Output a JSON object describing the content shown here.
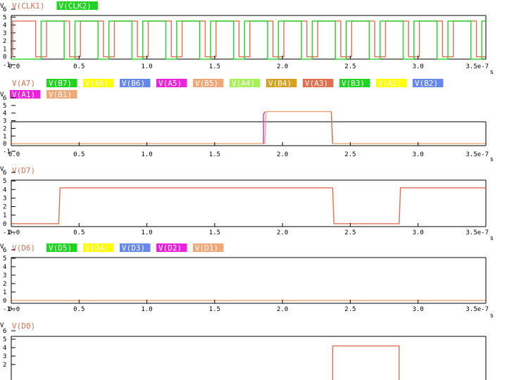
{
  "x_unit": "s",
  "x_max_label": "3.5e-7",
  "panels": [
    {
      "y_axis_label": "V",
      "legend_rows": [
        [
          {
            "text": "V(CLK1)",
            "color": "#e07050",
            "bg": "#ffffff"
          },
          {
            "text": "V(CLK2)",
            "color": "#ffffff",
            "bg": "#1ed41e"
          }
        ]
      ]
    },
    {
      "y_axis_label": "V",
      "legend_rows": [
        [
          {
            "text": "V(A7)",
            "color": "#e07050",
            "bg": "#ffffff"
          },
          {
            "text": "V(B7)",
            "color": "#ffffff",
            "bg": "#1ed41e"
          },
          {
            "text": "V(A6)",
            "color": "#ffffff",
            "bg": "#ffff00"
          },
          {
            "text": "V(B6)",
            "color": "#ffffff",
            "bg": "#6688ee"
          },
          {
            "text": "V(A5)",
            "color": "#ffffff",
            "bg": "#ee22dd"
          },
          {
            "text": "V(B5)",
            "color": "#ffffff",
            "bg": "#f0a878"
          },
          {
            "text": "V(A4)",
            "color": "#ffffff",
            "bg": "#a8f05a"
          },
          {
            "text": "V(B4)",
            "color": "#ffffff",
            "bg": "#d8a020"
          },
          {
            "text": "V(A3)",
            "color": "#ffffff",
            "bg": "#e07050"
          },
          {
            "text": "V(B3)",
            "color": "#ffffff",
            "bg": "#1ed41e"
          },
          {
            "text": "V(A2)",
            "color": "#ffffff",
            "bg": "#ffff00"
          },
          {
            "text": "V(B2)",
            "color": "#ffffff",
            "bg": "#6688ee"
          }
        ],
        [
          {
            "text": "V(A1)",
            "color": "#ffffff",
            "bg": "#ee22dd"
          },
          {
            "text": "V(B1)",
            "color": "#ffffff",
            "bg": "#f0a878"
          }
        ]
      ]
    },
    {
      "y_axis_label": "V",
      "legend_rows": [
        [
          {
            "text": "V(D7)",
            "color": "#e07050",
            "bg": "#ffffff"
          }
        ]
      ]
    },
    {
      "y_axis_label": "V",
      "legend_rows": [
        [
          {
            "text": "V(D6)",
            "color": "#e07050",
            "bg": "#ffffff"
          },
          {
            "text": "V(D5)",
            "color": "#ffffff",
            "bg": "#1ed41e"
          },
          {
            "text": "V(D4)",
            "color": "#ffffff",
            "bg": "#ffff00"
          },
          {
            "text": "V(D3)",
            "color": "#ffffff",
            "bg": "#6688ee"
          },
          {
            "text": "V(D2)",
            "color": "#ffffff",
            "bg": "#ee22dd"
          },
          {
            "text": "V(D1)",
            "color": "#ffffff",
            "bg": "#f0a878"
          }
        ]
      ]
    },
    {
      "y_axis_label": "V",
      "legend_rows": [
        [
          {
            "text": "V(D0)",
            "color": "#e07050",
            "bg": "#ffffff"
          }
        ]
      ]
    }
  ],
  "chart_data": [
    {
      "type": "line",
      "title": "",
      "xlabel": "s",
      "ylabel": "V",
      "xlim": [
        0,
        3.5
      ],
      "ylim": [
        -1,
        6
      ],
      "x_ticks": [
        "0.0",
        "0.5",
        "1.0",
        "1.5",
        "2.0",
        "2.5",
        "3.0",
        "3.5e-7"
      ],
      "y_ticks": [
        "-1",
        "0",
        "1",
        "2",
        "3",
        "4",
        "5",
        "6"
      ],
      "series": [
        {
          "name": "V(CLK1)",
          "color": "#e07050",
          "x": [
            0.0,
            0.01,
            0.01,
            0.18,
            0.18,
            0.26,
            0.26,
            0.43,
            0.43,
            0.51,
            0.51,
            0.68,
            0.68,
            0.76,
            0.76,
            0.93,
            0.93,
            1.01,
            1.01,
            1.18,
            1.18,
            1.26,
            1.26,
            1.43,
            1.43,
            1.51,
            1.51,
            1.68,
            1.68,
            1.76,
            1.76,
            1.93,
            1.93,
            2.01,
            2.01,
            2.18,
            2.18,
            2.26,
            2.26,
            2.43,
            2.43,
            2.51,
            2.51,
            2.68,
            2.68,
            2.76,
            2.76,
            2.93,
            2.93,
            3.01,
            3.01,
            3.18,
            3.18,
            3.26,
            3.26,
            3.43,
            3.43,
            3.5
          ],
          "y": [
            0,
            0,
            4.5,
            4.5,
            0,
            0,
            4.5,
            4.5,
            0,
            0,
            4.5,
            4.5,
            0,
            0,
            4.5,
            4.5,
            0,
            0,
            4.5,
            4.5,
            0,
            0,
            4.5,
            4.5,
            0,
            0,
            4.5,
            4.5,
            0,
            0,
            4.5,
            4.5,
            0,
            0,
            4.5,
            4.5,
            0,
            0,
            4.5,
            4.5,
            0,
            0,
            4.5,
            4.5,
            0,
            0,
            4.5,
            4.5,
            0,
            0,
            4.5,
            4.5,
            0,
            0,
            4.5,
            4.5,
            0,
            0
          ]
        },
        {
          "name": "V(CLK2)",
          "color": "#1ed41e",
          "x": [
            0.0,
            0.22,
            0.22,
            0.39,
            0.39,
            0.47,
            0.47,
            0.64,
            0.64,
            0.72,
            0.72,
            0.89,
            0.89,
            0.97,
            0.97,
            1.14,
            1.14,
            1.22,
            1.22,
            1.39,
            1.39,
            1.47,
            1.47,
            1.64,
            1.64,
            1.72,
            1.72,
            1.89,
            1.89,
            1.97,
            1.97,
            2.14,
            2.14,
            2.22,
            2.22,
            2.39,
            2.39,
            2.47,
            2.47,
            2.64,
            2.64,
            2.72,
            2.72,
            2.89,
            2.89,
            2.97,
            2.97,
            3.14,
            3.14,
            3.22,
            3.22,
            3.39,
            3.39,
            3.47,
            3.47,
            3.5
          ],
          "y": [
            -0.3,
            -0.3,
            4.5,
            4.5,
            -0.3,
            -0.3,
            4.5,
            4.5,
            -0.3,
            -0.3,
            4.5,
            4.5,
            -0.3,
            -0.3,
            4.5,
            4.5,
            -0.3,
            -0.3,
            4.5,
            4.5,
            -0.3,
            -0.3,
            4.5,
            4.5,
            -0.3,
            -0.3,
            4.5,
            4.5,
            -0.3,
            -0.3,
            4.5,
            4.5,
            -0.3,
            -0.3,
            4.5,
            4.5,
            -0.3,
            -0.3,
            4.5,
            4.5,
            -0.3,
            -0.3,
            4.5,
            4.5,
            -0.3,
            -0.3,
            4.5,
            4.5,
            -0.3,
            -0.3,
            4.5,
            4.5,
            -0.3,
            -0.3,
            4.5,
            4.5
          ]
        }
      ]
    },
    {
      "type": "line",
      "title": "",
      "xlabel": "s",
      "ylabel": "V",
      "xlim": [
        0,
        3.5
      ],
      "ylim": [
        -1,
        6
      ],
      "x_ticks": [
        "0.0",
        "0.5",
        "1.0",
        "1.5",
        "2.0",
        "2.5",
        "3.0",
        "3.5e-7"
      ],
      "y_ticks": [
        "-1",
        "0",
        "1",
        "2",
        "3",
        "4",
        "5",
        "6"
      ],
      "series": [
        {
          "name": "V(B1)",
          "color": "#f0a878",
          "x": [
            0.0,
            1.87,
            1.88,
            2.36,
            2.37,
            3.5
          ],
          "y": [
            0,
            0,
            4.2,
            4.2,
            0,
            0
          ]
        },
        {
          "name": "V(A1)",
          "color": "#ee22dd",
          "x": [
            1.86,
            1.86,
            1.87
          ],
          "y": [
            0,
            3.8,
            4.2
          ]
        },
        {
          "name": "V(A7)",
          "color": "#e07050",
          "x": [
            2.36,
            2.37
          ],
          "y": [
            4.2,
            0
          ]
        }
      ]
    },
    {
      "type": "line",
      "title": "",
      "xlabel": "s",
      "ylabel": "V",
      "xlim": [
        0,
        3.5
      ],
      "ylim": [
        -1,
        6
      ],
      "x_ticks": [
        "0.0",
        "0.5",
        "1.0",
        "1.5",
        "2.0",
        "2.5",
        "3.0",
        "3.5e-7"
      ],
      "y_ticks": [
        "-1",
        "0",
        "1",
        "2",
        "3",
        "4",
        "5",
        "6"
      ],
      "series": [
        {
          "name": "V(D7)",
          "color": "#e07050",
          "x": [
            0.0,
            0.35,
            0.36,
            2.37,
            2.38,
            2.86,
            2.87,
            3.5
          ],
          "y": [
            0,
            0,
            4.2,
            4.2,
            0,
            0,
            4.2,
            4.2
          ]
        }
      ]
    },
    {
      "type": "line",
      "title": "",
      "xlabel": "s",
      "ylabel": "V",
      "xlim": [
        0,
        3.5
      ],
      "ylim": [
        -1,
        6
      ],
      "x_ticks": [
        "0.0",
        "0.5",
        "1.0",
        "1.5",
        "2.0",
        "2.5",
        "3.0",
        "3.5e-7"
      ],
      "y_ticks": [
        "-1",
        "0",
        "1",
        "2",
        "3",
        "4",
        "5",
        "6"
      ],
      "series": [
        {
          "name": "V(D1)",
          "color": "#f0a878",
          "x": [
            0.0,
            3.5
          ],
          "y": [
            0,
            0
          ]
        }
      ]
    },
    {
      "type": "line",
      "title": "",
      "xlabel": "s",
      "ylabel": "V",
      "xlim": [
        0,
        3.5
      ],
      "ylim": [
        -1,
        6
      ],
      "x_ticks": [],
      "y_ticks": [
        "2",
        "3",
        "4",
        "5",
        "6"
      ],
      "series": [
        {
          "name": "V(D0)",
          "color": "#e07050",
          "x": [
            2.37,
            2.37,
            2.86,
            2.86
          ],
          "y": [
            0,
            4.2,
            4.2,
            0
          ]
        }
      ]
    }
  ]
}
